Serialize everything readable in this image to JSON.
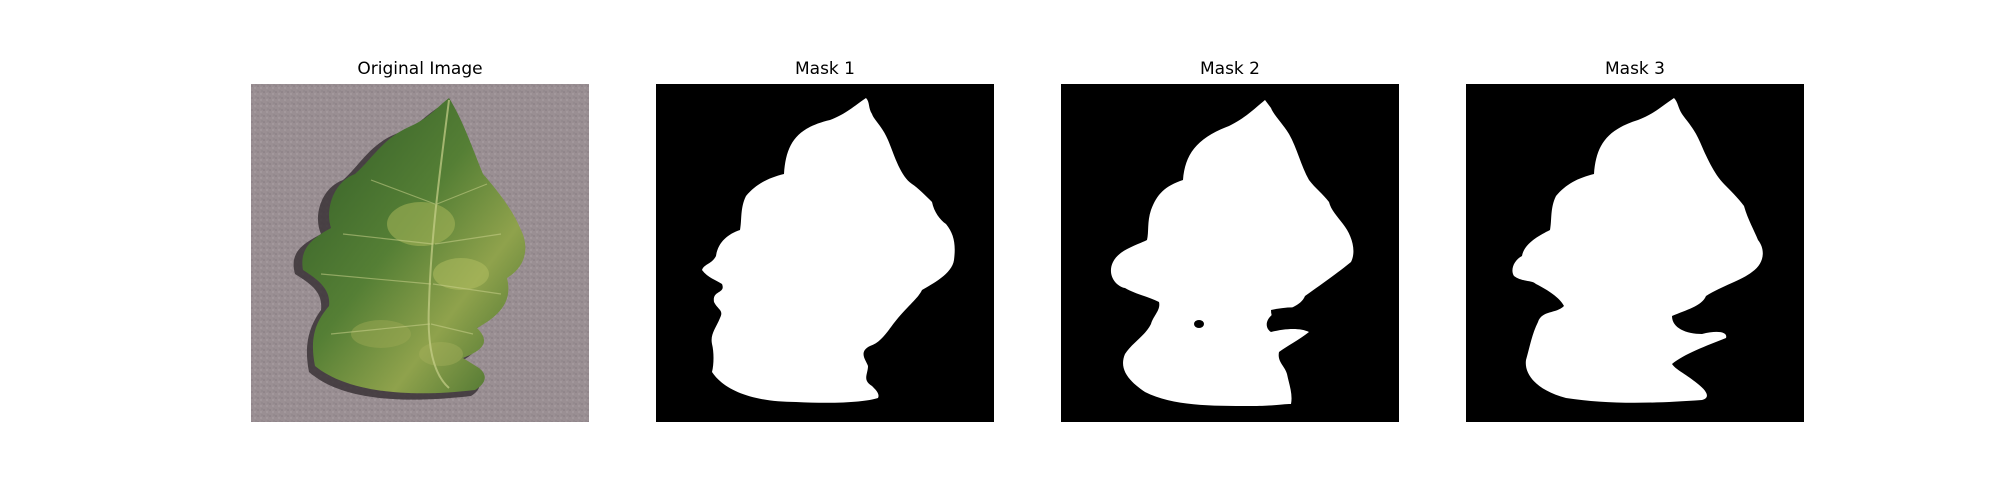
{
  "panels": [
    {
      "title": "Original Image",
      "kind": "photo"
    },
    {
      "title": "Mask 1",
      "kind": "mask"
    },
    {
      "title": "Mask 2",
      "kind": "mask"
    },
    {
      "title": "Mask 3",
      "kind": "mask"
    }
  ],
  "colors": {
    "background": "#ffffff",
    "mask_background": "#000000",
    "mask_foreground": "#ffffff",
    "ground": "#9a8f93",
    "leaf_dark": "#2f5a26",
    "leaf_mid": "#4f7a33",
    "leaf_yellow": "#a8b75a",
    "shadow": "#3a3336"
  }
}
